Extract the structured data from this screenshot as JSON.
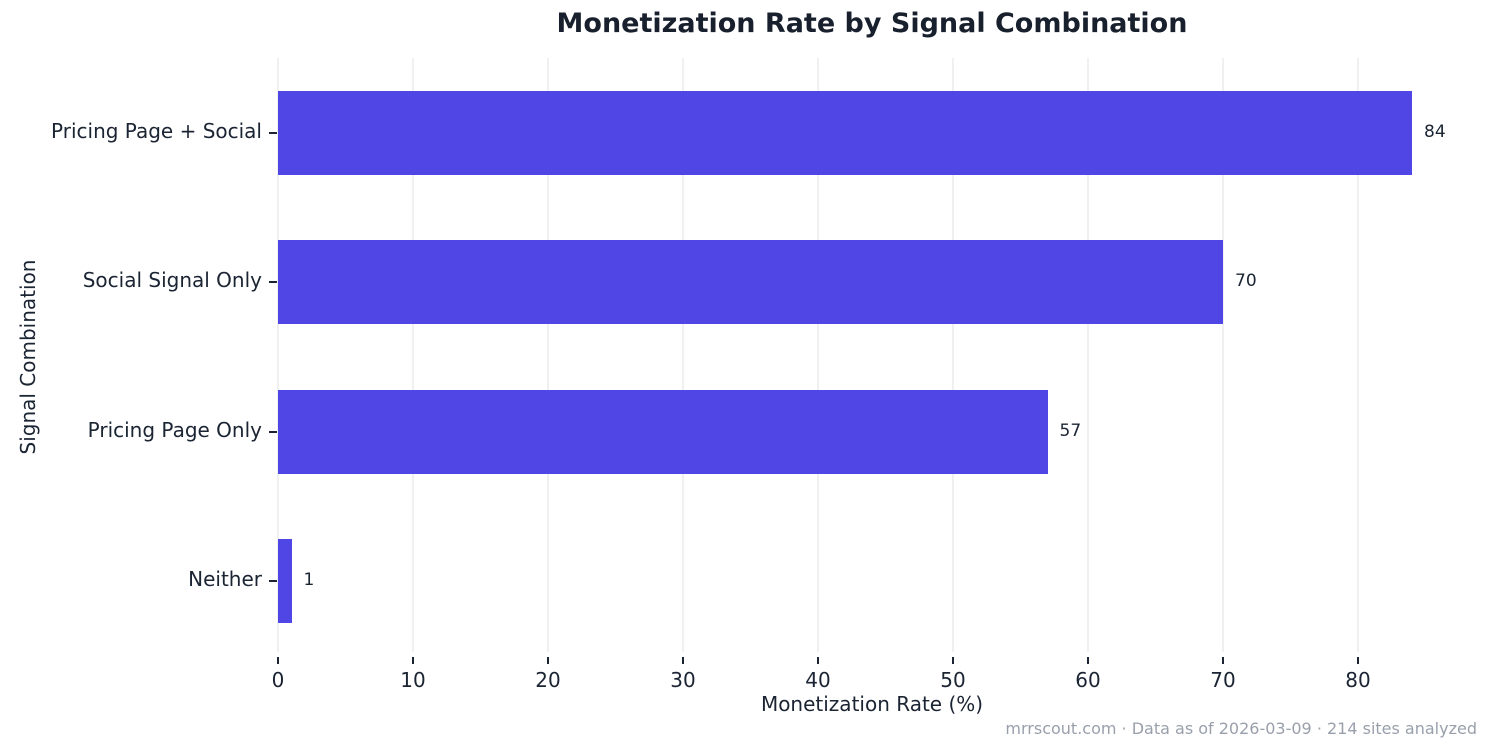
{
  "title": "Monetization Rate by Signal Combination",
  "x_axis_label": "Monetization Rate (%)",
  "y_axis_label": "Signal Combination",
  "footer": {
    "text": "mrrscout.com  ·  Data as of 2026-03-09  ·  214 sites analyzed"
  },
  "colors": {
    "bar": "#4F46E5",
    "text_dark": "#1b2433",
    "grid": "#f0f0f0",
    "footer_gray": "#99a0ac",
    "background": "#ffffff"
  },
  "chart_data": {
    "type": "bar",
    "orientation": "horizontal",
    "title": "Monetization Rate by Signal Combination",
    "categories": [
      "Pricing Page + Social",
      "Social Signal Only",
      "Pricing Page Only",
      "Neither"
    ],
    "values": [
      84,
      70,
      57,
      1
    ],
    "value_labels": [
      "84",
      "70",
      "57",
      "1"
    ],
    "xlabel": "Monetization Rate (%)",
    "ylabel": "Signal Combination",
    "xlim": [
      0,
      88
    ],
    "xticks": [
      0,
      10,
      20,
      30,
      40,
      50,
      60,
      70,
      80
    ],
    "grid": "vertical-only",
    "legend": "none",
    "bar_color": "#4F46E5",
    "source_note": "mrrscout.com  ·  Data as of 2026-03-09  ·  214 sites analyzed"
  }
}
